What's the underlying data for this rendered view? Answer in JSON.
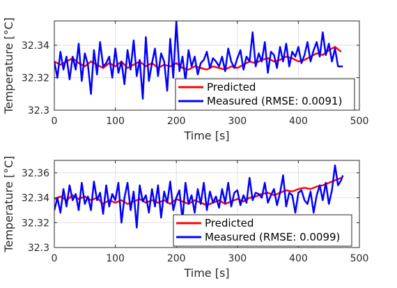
{
  "chart_data": [
    {
      "type": "line",
      "xlabel": "Time [s]",
      "ylabel": "Temperature [°C]",
      "xlim": [
        0,
        500
      ],
      "ylim": [
        32.3,
        32.355
      ],
      "xticks": [
        0,
        100,
        200,
        300,
        400,
        500
      ],
      "yticks": [
        32.3,
        32.32,
        32.34
      ],
      "xtick_labels": [
        "0",
        "100",
        "200",
        "300",
        "400",
        "500"
      ],
      "ytick_labels": [
        "32.3",
        "32.32",
        "32.34"
      ],
      "grid": true,
      "legend_position": "bottom-right",
      "series": [
        {
          "name": "Predicted",
          "color": "#ff0000",
          "x": [
            0,
            10,
            20,
            30,
            40,
            50,
            60,
            70,
            80,
            90,
            100,
            110,
            120,
            130,
            140,
            150,
            160,
            170,
            180,
            190,
            200,
            210,
            220,
            230,
            240,
            250,
            260,
            270,
            280,
            290,
            300,
            310,
            320,
            330,
            340,
            350,
            360,
            370,
            380,
            390,
            400,
            410,
            420,
            430,
            440,
            450,
            460,
            470
          ],
          "values": [
            32.33,
            32.328,
            32.33,
            32.332,
            32.329,
            32.327,
            32.33,
            32.328,
            32.326,
            32.329,
            32.327,
            32.33,
            32.326,
            32.328,
            32.33,
            32.327,
            32.329,
            32.326,
            32.328,
            32.327,
            32.329,
            32.326,
            32.325,
            32.327,
            32.326,
            32.325,
            32.327,
            32.326,
            32.325,
            32.327,
            32.326,
            32.328,
            32.33,
            32.329,
            32.331,
            32.332,
            32.33,
            32.331,
            32.333,
            32.332,
            32.33,
            32.331,
            32.333,
            32.335,
            32.334,
            32.337,
            32.339,
            32.336
          ]
        },
        {
          "name": "Measured (RMSE: 0.0091)",
          "color": "#0000ff",
          "x": [
            0,
            5,
            10,
            15,
            20,
            25,
            30,
            35,
            40,
            45,
            50,
            55,
            60,
            65,
            70,
            75,
            80,
            85,
            90,
            95,
            100,
            105,
            110,
            115,
            120,
            125,
            130,
            135,
            140,
            145,
            150,
            155,
            160,
            165,
            170,
            175,
            180,
            185,
            190,
            195,
            200,
            205,
            210,
            215,
            220,
            225,
            230,
            235,
            240,
            245,
            250,
            255,
            260,
            265,
            270,
            275,
            280,
            285,
            290,
            295,
            300,
            305,
            310,
            315,
            320,
            325,
            330,
            335,
            340,
            345,
            350,
            355,
            360,
            365,
            370,
            375,
            380,
            385,
            390,
            395,
            400,
            405,
            410,
            415,
            420,
            425,
            430,
            435,
            440,
            445,
            450,
            455,
            460,
            465,
            470,
            473
          ],
          "values": [
            32.33,
            32.32,
            32.336,
            32.325,
            32.333,
            32.319,
            32.333,
            32.325,
            32.341,
            32.318,
            32.335,
            32.328,
            32.31,
            32.337,
            32.322,
            32.342,
            32.327,
            32.329,
            32.333,
            32.32,
            32.338,
            32.323,
            32.33,
            32.316,
            32.337,
            32.325,
            32.343,
            32.321,
            32.331,
            32.307,
            32.345,
            32.318,
            32.329,
            32.338,
            32.321,
            32.335,
            32.33,
            32.312,
            32.344,
            32.32,
            32.355,
            32.324,
            32.333,
            32.318,
            32.337,
            32.327,
            32.333,
            32.322,
            32.329,
            32.331,
            32.336,
            32.326,
            32.332,
            32.33,
            32.327,
            32.333,
            32.324,
            32.338,
            32.33,
            32.326,
            32.332,
            32.337,
            32.325,
            32.333,
            32.33,
            32.348,
            32.327,
            32.335,
            32.33,
            32.342,
            32.323,
            32.336,
            32.334,
            32.326,
            32.339,
            32.33,
            32.341,
            32.327,
            32.336,
            32.333,
            32.339,
            32.329,
            32.334,
            32.342,
            32.33,
            32.337,
            32.342,
            32.333,
            32.348,
            32.334,
            32.341,
            32.33,
            32.338,
            32.327,
            32.327,
            32.327
          ]
        }
      ]
    },
    {
      "type": "line",
      "xlabel": "Time [s]",
      "ylabel": "Temperature [°C]",
      "xlim": [
        0,
        500
      ],
      "ylim": [
        32.3,
        32.37
      ],
      "xticks": [
        0,
        100,
        200,
        300,
        400,
        500
      ],
      "yticks": [
        32.3,
        32.32,
        32.34,
        32.36
      ],
      "xtick_labels": [
        "0",
        "100",
        "200",
        "300",
        "400",
        "500"
      ],
      "ytick_labels": [
        "32.3",
        "32.32",
        "32.34",
        "32.36"
      ],
      "grid": true,
      "legend_position": "bottom-right",
      "series": [
        {
          "name": "Predicted",
          "color": "#ff0000",
          "x": [
            0,
            10,
            20,
            30,
            40,
            50,
            60,
            70,
            80,
            90,
            100,
            110,
            120,
            130,
            140,
            150,
            160,
            170,
            180,
            190,
            200,
            210,
            220,
            230,
            240,
            250,
            260,
            270,
            280,
            290,
            300,
            310,
            320,
            330,
            340,
            350,
            360,
            370,
            380,
            390,
            400,
            410,
            420,
            430,
            440,
            450,
            460,
            470
          ],
          "values": [
            32.339,
            32.341,
            32.338,
            32.342,
            32.339,
            32.341,
            32.338,
            32.34,
            32.335,
            32.338,
            32.336,
            32.338,
            32.335,
            32.337,
            32.339,
            32.336,
            32.338,
            32.336,
            32.338,
            32.335,
            32.339,
            32.337,
            32.335,
            32.338,
            32.336,
            32.334,
            32.336,
            32.338,
            32.335,
            32.337,
            32.339,
            32.337,
            32.34,
            32.341,
            32.343,
            32.344,
            32.342,
            32.344,
            32.346,
            32.345,
            32.347,
            32.348,
            32.347,
            32.349,
            32.35,
            32.352,
            32.354,
            32.356
          ]
        },
        {
          "name": "Measured (RMSE: 0.0099)",
          "color": "#0000ff",
          "x": [
            0,
            5,
            10,
            15,
            20,
            25,
            30,
            35,
            40,
            45,
            50,
            55,
            60,
            65,
            70,
            75,
            80,
            85,
            90,
            95,
            100,
            105,
            110,
            115,
            120,
            125,
            130,
            135,
            140,
            145,
            150,
            155,
            160,
            165,
            170,
            175,
            180,
            185,
            190,
            195,
            200,
            205,
            210,
            215,
            220,
            225,
            230,
            235,
            240,
            245,
            250,
            255,
            260,
            265,
            270,
            275,
            280,
            285,
            290,
            295,
            300,
            305,
            310,
            315,
            320,
            325,
            330,
            335,
            340,
            345,
            350,
            355,
            360,
            365,
            370,
            375,
            380,
            385,
            390,
            395,
            400,
            405,
            410,
            415,
            420,
            425,
            430,
            435,
            440,
            445,
            450,
            455,
            460,
            465,
            470,
            473
          ],
          "values": [
            32.33,
            32.34,
            32.328,
            32.347,
            32.333,
            32.35,
            32.338,
            32.343,
            32.33,
            32.352,
            32.335,
            32.341,
            32.33,
            32.353,
            32.338,
            32.344,
            32.327,
            32.35,
            32.333,
            32.343,
            32.338,
            32.352,
            32.32,
            32.34,
            32.352,
            32.33,
            32.345,
            32.316,
            32.35,
            32.337,
            32.342,
            32.328,
            32.347,
            32.333,
            32.35,
            32.324,
            32.345,
            32.336,
            32.353,
            32.33,
            32.34,
            32.346,
            32.322,
            32.352,
            32.335,
            32.342,
            32.328,
            32.347,
            32.335,
            32.352,
            32.33,
            32.345,
            32.336,
            32.341,
            32.332,
            32.347,
            32.336,
            32.352,
            32.333,
            32.344,
            32.346,
            32.334,
            32.342,
            32.336,
            32.356,
            32.338,
            32.344,
            32.343,
            32.34,
            32.352,
            32.336,
            32.342,
            32.347,
            32.334,
            32.344,
            32.358,
            32.333,
            32.344,
            32.342,
            32.328,
            32.344,
            32.346,
            32.338,
            32.335,
            32.345,
            32.328,
            32.342,
            32.35,
            32.338,
            32.352,
            32.335,
            32.346,
            32.366,
            32.35,
            32.354,
            32.358
          ]
        }
      ]
    }
  ]
}
